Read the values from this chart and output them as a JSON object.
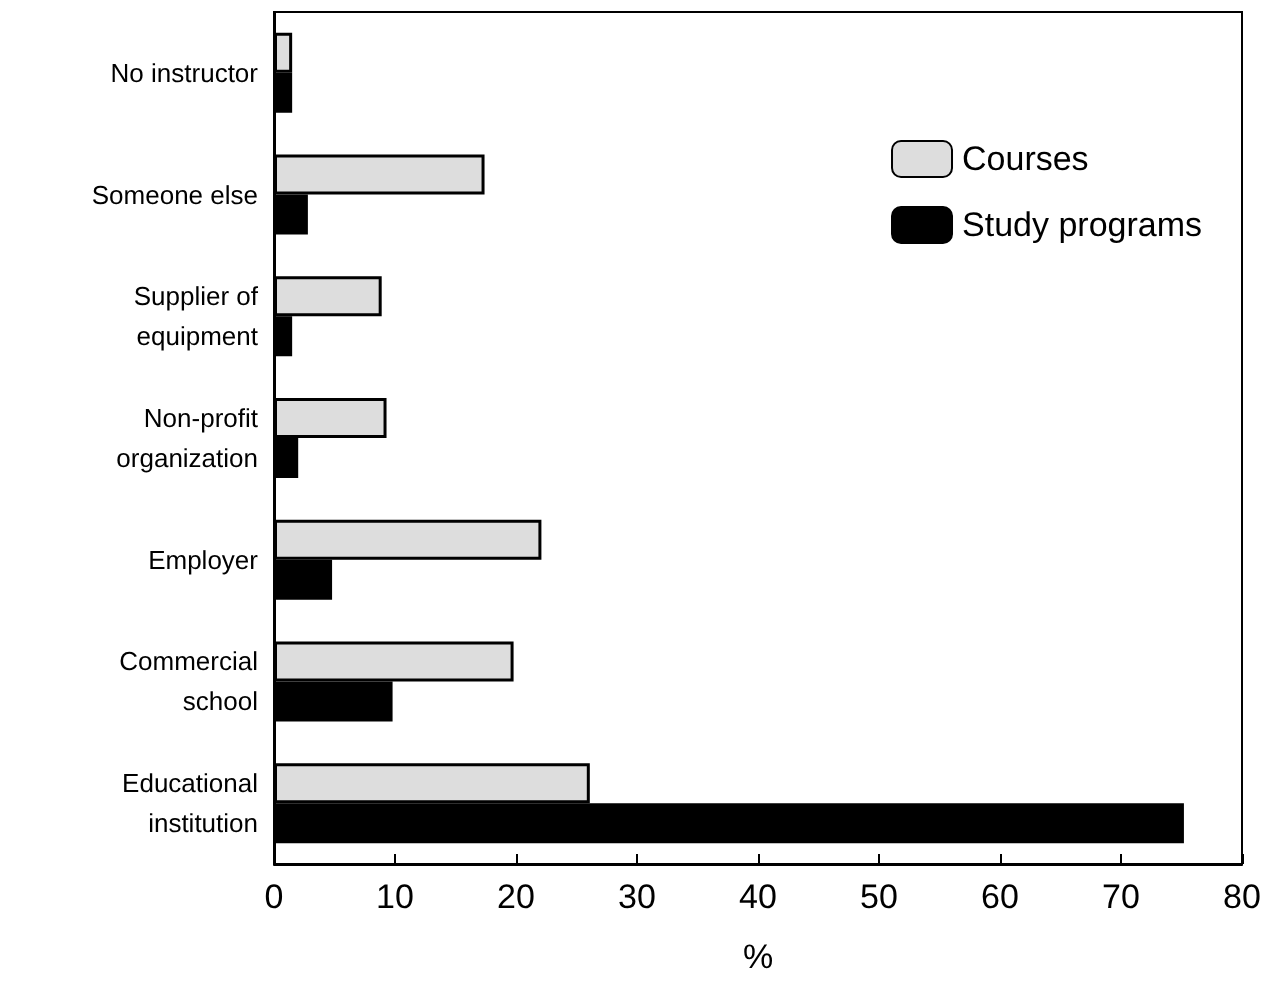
{
  "chart_data": {
    "type": "bar",
    "orientation": "horizontal",
    "xlabel": "%",
    "categories": [
      "No instructor",
      "Someone else",
      "Supplier of\nequipment",
      "Non-profit\norganization",
      "Employer",
      "Commercial\nschool",
      "Educational\ninstitution"
    ],
    "series": [
      {
        "name": "Courses",
        "color": "#dddddd",
        "values": [
          1.5,
          17.4,
          8.9,
          9.3,
          22.1,
          19.8,
          26.1
        ]
      },
      {
        "name": "Study programs",
        "color": "#000000",
        "values": [
          1.5,
          2.8,
          1.5,
          2,
          4.8,
          9.8,
          75.2
        ]
      }
    ],
    "xlim": [
      0,
      80
    ],
    "xticks": [
      0,
      10,
      20,
      30,
      40,
      50,
      60,
      70,
      80
    ],
    "grid": false,
    "legend": "top right"
  }
}
